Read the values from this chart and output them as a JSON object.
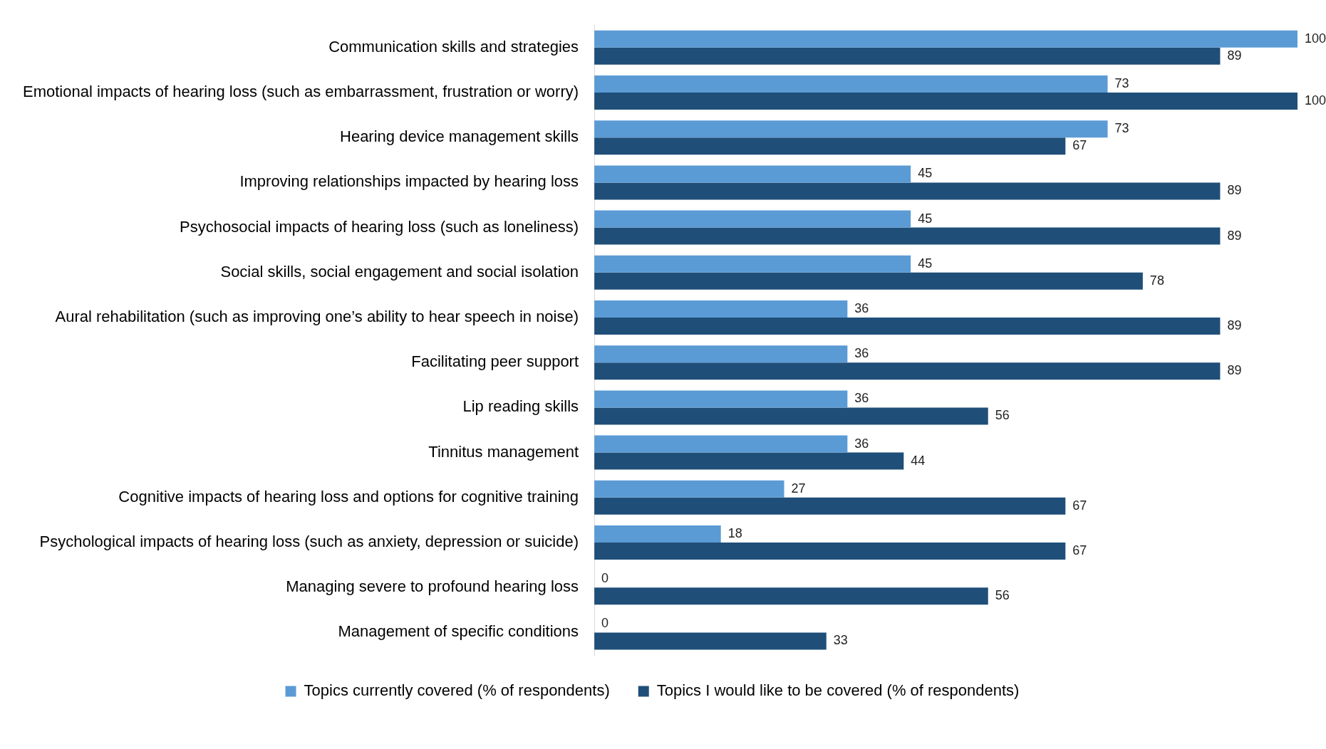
{
  "chart_data": {
    "type": "bar",
    "orientation": "horizontal",
    "categories": [
      "Communication skills and strategies",
      "Emotional impacts of hearing loss (such as embarrassment, frustration or worry)",
      "Hearing device management skills",
      "Improving relationships impacted by hearing loss",
      "Psychosocial impacts of hearing loss (such as loneliness)",
      "Social skills, social engagement and social isolation",
      "Aural rehabilitation (such as improving one’s ability to hear speech in noise)",
      "Facilitating peer support",
      "Lip reading skills",
      "Tinnitus management",
      "Cognitive impacts of hearing loss and options for cognitive training",
      "Psychological impacts of hearing loss (such as anxiety, depression or suicide)",
      "Managing severe to profound hearing loss",
      "Management of specific conditions"
    ],
    "series": [
      {
        "name": "Topics currently covered (% of respondents)",
        "color": "#5b9bd5",
        "values": [
          100,
          73,
          73,
          45,
          45,
          45,
          36,
          36,
          36,
          36,
          27,
          18,
          0,
          0
        ]
      },
      {
        "name": "Topics I would like to be covered (% of respondents)",
        "color": "#1f4e79",
        "values": [
          89,
          100,
          67,
          89,
          89,
          78,
          89,
          89,
          56,
          44,
          67,
          67,
          56,
          33
        ]
      }
    ],
    "xlim": [
      0,
      100
    ],
    "tick_labels": "y",
    "data_labels": true,
    "grid": false,
    "legend": "bottom"
  }
}
